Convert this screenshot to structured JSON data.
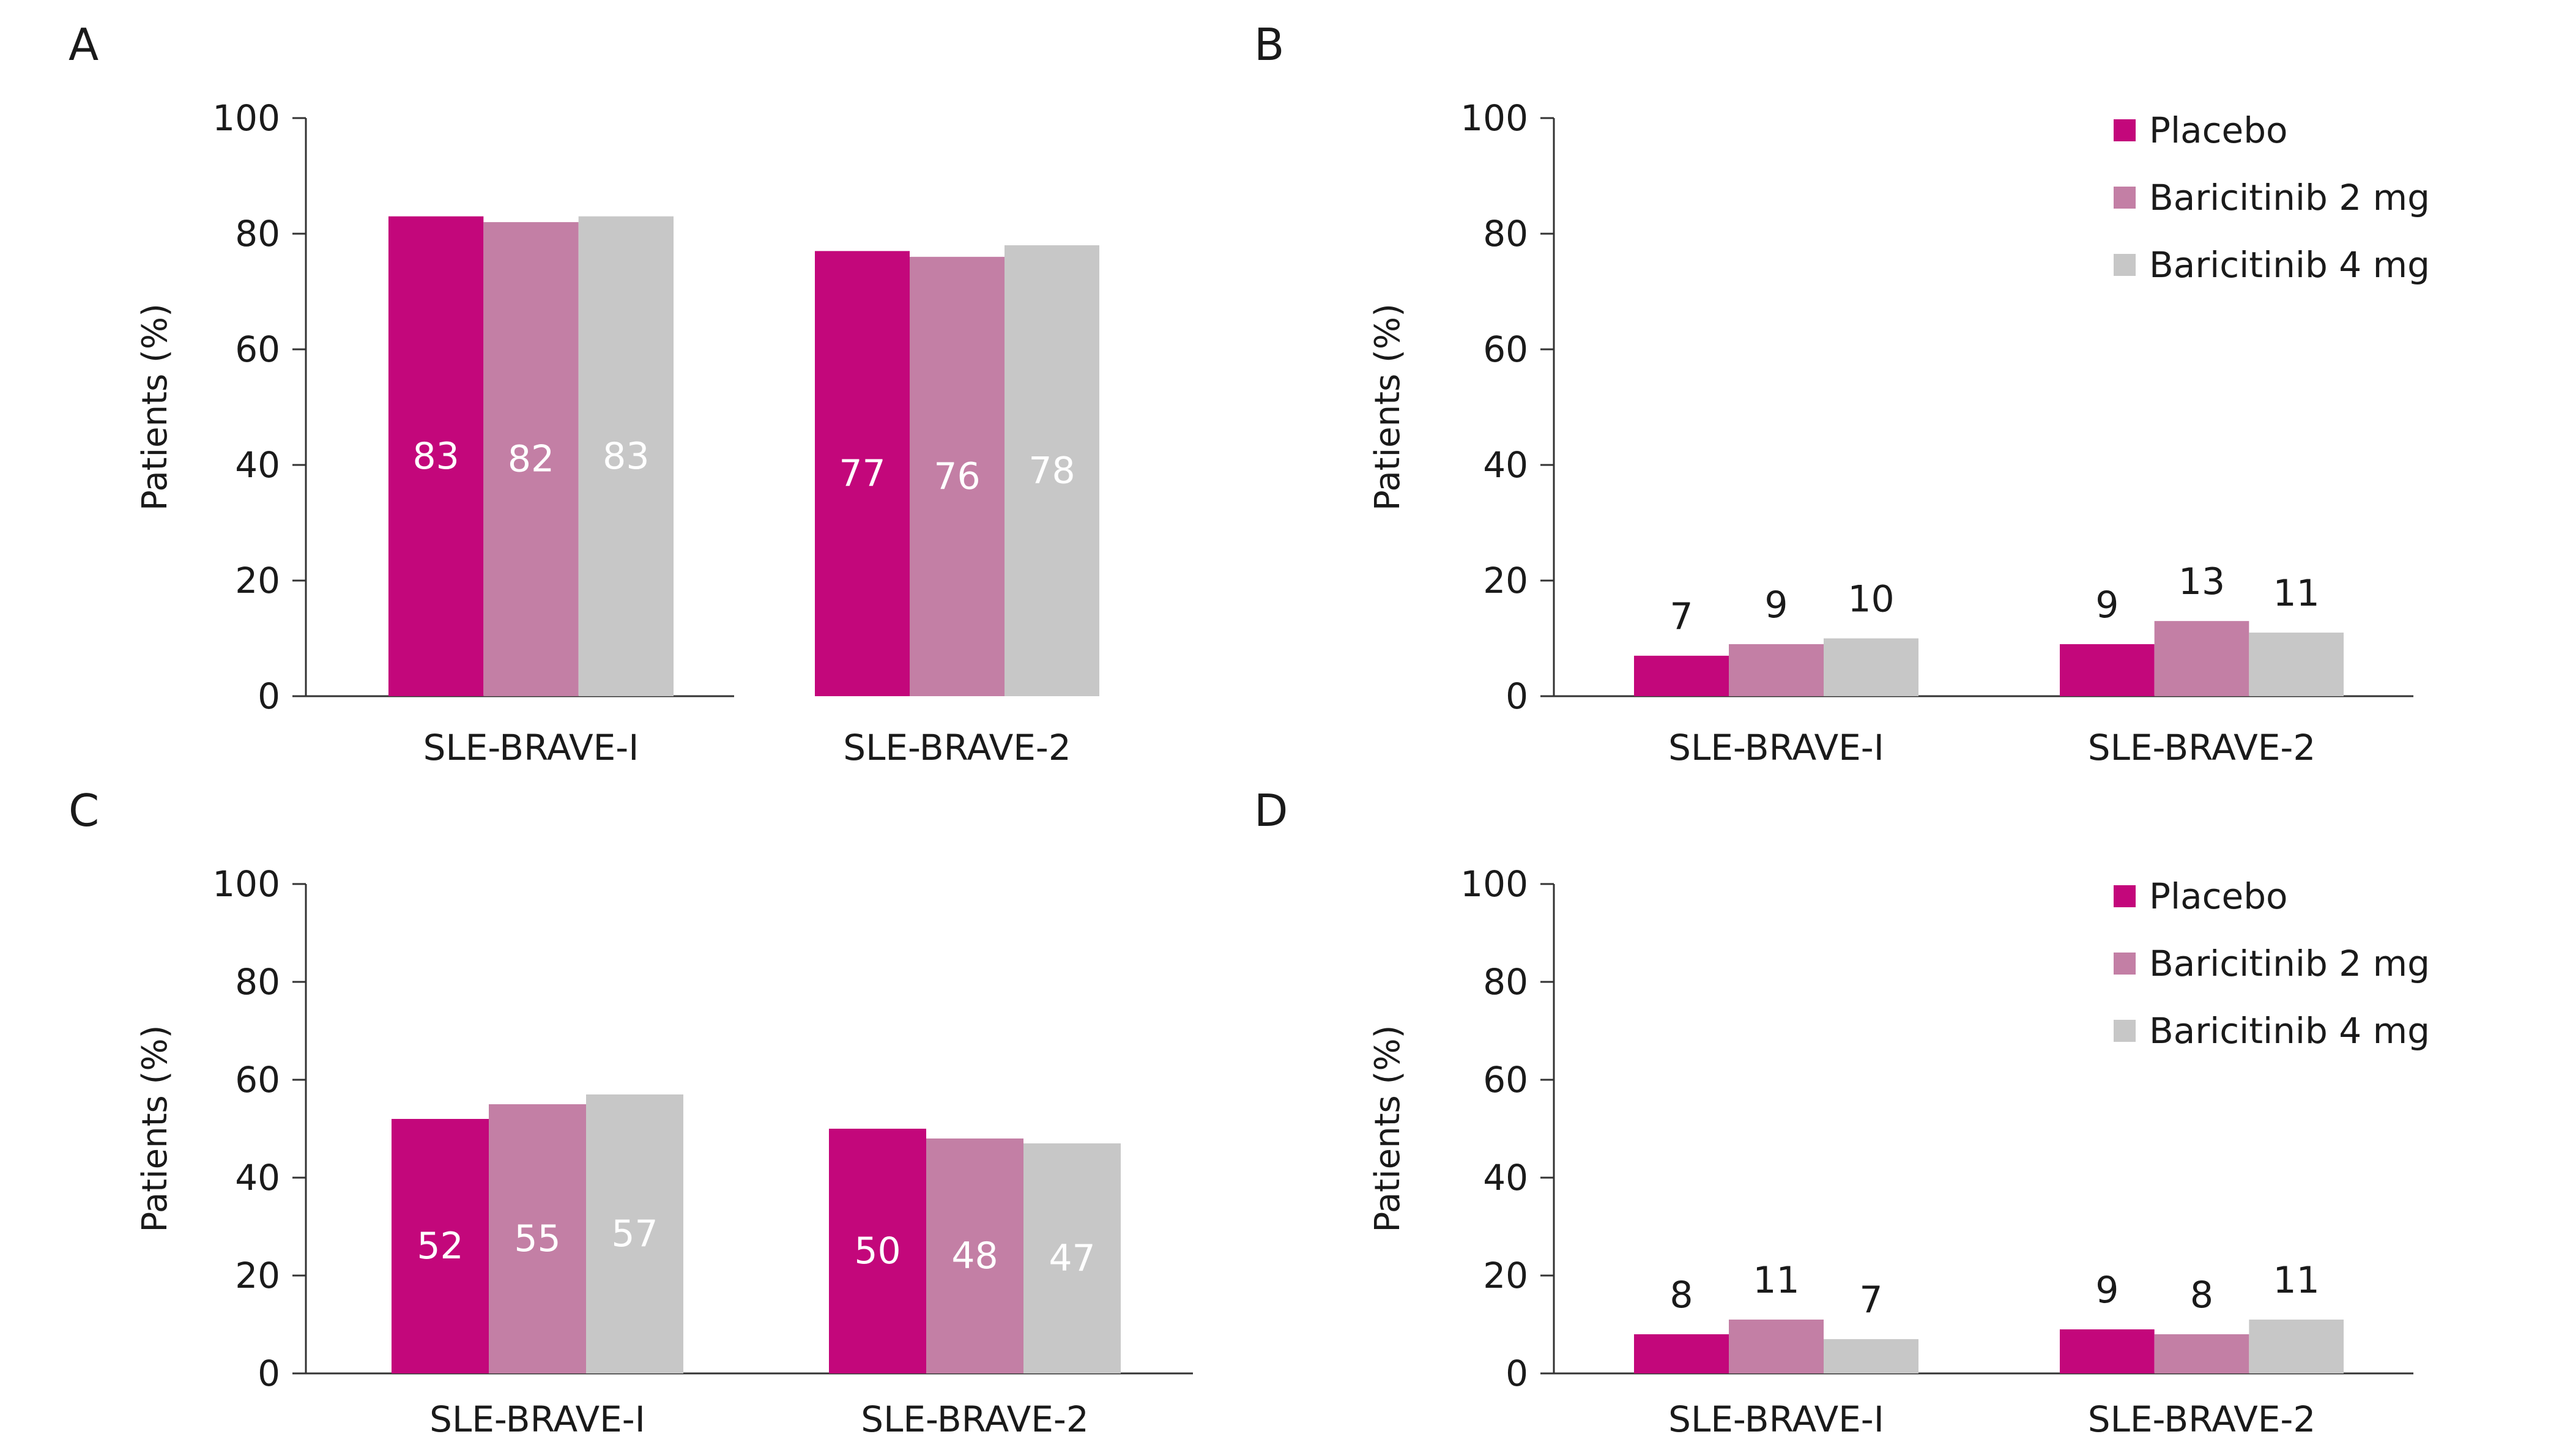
{
  "colors": {
    "placebo": "#C3077B",
    "baricitinib_2mg": "#C37FA5",
    "baricitinib_4mg": "#C7C7C7"
  },
  "chart_data": [
    {
      "panel": "A",
      "type": "bar",
      "ylabel": "Patients (%)",
      "ylim": [
        0,
        100
      ],
      "yticks": [
        0,
        20,
        40,
        60,
        80,
        100
      ],
      "categories": [
        "SLE-BRAVE-I",
        "SLE-BRAVE-2"
      ],
      "series": [
        {
          "name": "Placebo",
          "values": [
            83,
            77
          ]
        },
        {
          "name": "Baricitinib 2 mg",
          "values": [
            82,
            76
          ]
        },
        {
          "name": "Baricitinib 4 mg",
          "values": [
            83,
            78
          ]
        }
      ],
      "labels_inside": true,
      "legend": false
    },
    {
      "panel": "B",
      "type": "bar",
      "ylabel": "Patients (%)",
      "ylim": [
        0,
        100
      ],
      "yticks": [
        0,
        20,
        40,
        60,
        80,
        100
      ],
      "categories": [
        "SLE-BRAVE-I",
        "SLE-BRAVE-2"
      ],
      "series": [
        {
          "name": "Placebo",
          "values": [
            7,
            9
          ]
        },
        {
          "name": "Baricitinib 2 mg",
          "values": [
            9,
            13
          ]
        },
        {
          "name": "Baricitinib 4 mg",
          "values": [
            10,
            11
          ]
        }
      ],
      "labels_inside": false,
      "legend": true,
      "legend_position": "top-right"
    },
    {
      "panel": "C",
      "type": "bar",
      "ylabel": "Patients (%)",
      "ylim": [
        0,
        100
      ],
      "yticks": [
        0,
        20,
        40,
        60,
        80,
        100
      ],
      "categories": [
        "SLE-BRAVE-I",
        "SLE-BRAVE-2"
      ],
      "series": [
        {
          "name": "Placebo",
          "values": [
            52,
            50
          ]
        },
        {
          "name": "Baricitinib 2 mg",
          "values": [
            55,
            48
          ]
        },
        {
          "name": "Baricitinib 4 mg",
          "values": [
            57,
            47
          ]
        }
      ],
      "labels_inside": true,
      "legend": false
    },
    {
      "panel": "D",
      "type": "bar",
      "ylabel": "Patients (%)",
      "ylim": [
        0,
        100
      ],
      "yticks": [
        0,
        20,
        40,
        60,
        80,
        100
      ],
      "categories": [
        "SLE-BRAVE-I",
        "SLE-BRAVE-2"
      ],
      "series": [
        {
          "name": "Placebo",
          "values": [
            8,
            9
          ]
        },
        {
          "name": "Baricitinib 2 mg",
          "values": [
            11,
            8
          ]
        },
        {
          "name": "Baricitinib 4 mg",
          "values": [
            7,
            11
          ]
        }
      ],
      "labels_inside": false,
      "legend": true,
      "legend_position": "top-right"
    }
  ]
}
